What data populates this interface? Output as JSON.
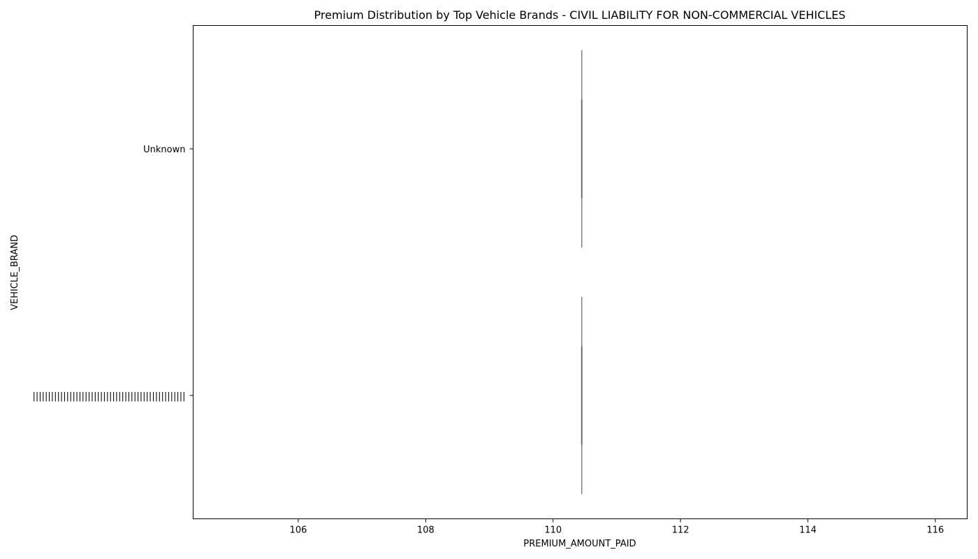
{
  "chart_data": {
    "type": "violin",
    "orientation": "horizontal",
    "title": "Premium Distribution by Top Vehicle Brands - CIVIL LIABILITY FOR NON-COMMERCIAL VEHICLES",
    "xlabel": "PREMIUM_AMOUNT_PAID",
    "ylabel": "VEHICLE_BRAND",
    "xlim": [
      104.35,
      116.5
    ],
    "xticks": [
      106,
      108,
      110,
      112,
      114,
      116
    ],
    "categories": [
      "Unknown",
      "||||||||||||||||||||||||||||||||||||||||||||||||||"
    ],
    "series": [
      {
        "category": "Unknown",
        "values": [
          110.45
        ],
        "min": 110.45,
        "q1": 110.45,
        "median": 110.45,
        "q3": 110.45,
        "max": 110.45
      },
      {
        "category": "||||||||||||||||||||||||||||||||||||||||||||||||||",
        "values": [
          110.45
        ],
        "min": 110.45,
        "q1": 110.45,
        "median": 110.45,
        "q3": 110.45,
        "max": 110.45
      }
    ],
    "grid": false,
    "legend": "none",
    "colors": {
      "violin": "#808080",
      "axis": "#000000",
      "background": "#ffffff"
    }
  }
}
